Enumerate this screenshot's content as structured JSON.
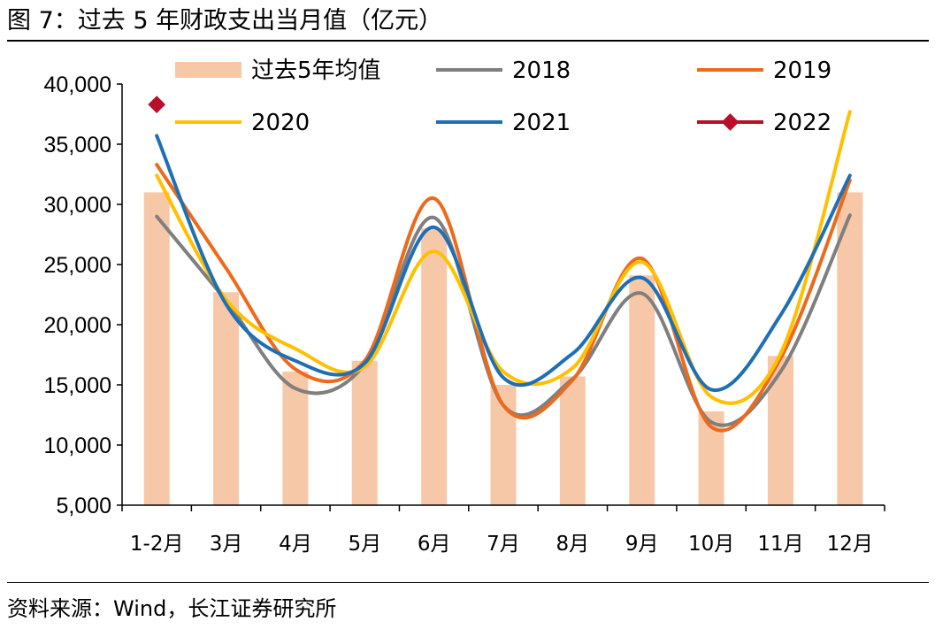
{
  "title": "图 7：过去 5 年财政支出当月值（亿元）",
  "source": "资料来源：Wind，长江证券研究所",
  "chart_data": {
    "type": "bar+line",
    "title": "图 7：过去 5 年财政支出当月值（亿元）",
    "xlabel": "",
    "ylabel": "",
    "ylim": [
      5000,
      40000
    ],
    "ytick_step": 5000,
    "yticks": [
      "5,000",
      "10,000",
      "15,000",
      "20,000",
      "25,000",
      "30,000",
      "35,000",
      "40,000"
    ],
    "categories": [
      "1-2月",
      "3月",
      "4月",
      "5月",
      "6月",
      "7月",
      "8月",
      "9月",
      "10月",
      "11月",
      "12月"
    ],
    "grid": false,
    "legend_position": "top",
    "bars": {
      "name": "过去5年均值",
      "color": "#F7C8A7",
      "values": [
        31000,
        22700,
        16100,
        17000,
        28000,
        15000,
        15700,
        24100,
        12800,
        17400,
        31000
      ]
    },
    "series": [
      {
        "name": "2018",
        "color": "#7F7F7F",
        "values": [
          29000,
          22000,
          14700,
          16700,
          28900,
          13300,
          15500,
          22600,
          11900,
          16100,
          29100
        ]
      },
      {
        "name": "2019",
        "color": "#ED6A1C",
        "values": [
          33300,
          24700,
          16300,
          17000,
          30500,
          13300,
          15400,
          25500,
          11500,
          17200,
          32000
        ]
      },
      {
        "name": "2020",
        "color": "#FFC000",
        "values": [
          32400,
          22100,
          18000,
          16500,
          26100,
          16100,
          16400,
          25200,
          14000,
          17600,
          37700
        ]
      },
      {
        "name": "2021",
        "color": "#1F6FB5",
        "values": [
          35700,
          21700,
          17000,
          16800,
          28100,
          15600,
          17600,
          23900,
          14600,
          20800,
          32400
        ]
      },
      {
        "name": "2022",
        "color": "#B8102A",
        "marker": "diamond",
        "values": [
          38300,
          null,
          null,
          null,
          null,
          null,
          null,
          null,
          null,
          null,
          null
        ]
      }
    ]
  }
}
